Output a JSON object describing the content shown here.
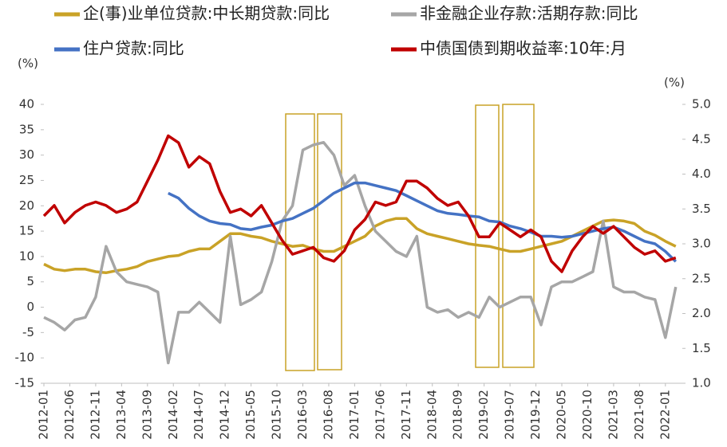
{
  "chart_data": {
    "type": "line",
    "left_unit": "(%)",
    "right_unit": "(%)",
    "x": [
      "2012-01",
      "2012-03",
      "2012-05",
      "2012-07",
      "2012-09",
      "2012-11",
      "2013-01",
      "2013-03",
      "2013-05",
      "2013-07",
      "2013-09",
      "2013-11",
      "2014-01",
      "2014-03",
      "2014-05",
      "2014-07",
      "2014-09",
      "2014-11",
      "2015-01",
      "2015-03",
      "2015-05",
      "2015-07",
      "2015-09",
      "2015-11",
      "2016-01",
      "2016-03",
      "2016-05",
      "2016-07",
      "2016-09",
      "2016-11",
      "2017-01",
      "2017-03",
      "2017-05",
      "2017-07",
      "2017-09",
      "2017-11",
      "2018-01",
      "2018-03",
      "2018-05",
      "2018-07",
      "2018-09",
      "2018-11",
      "2019-01",
      "2019-03",
      "2019-05",
      "2019-07",
      "2019-09",
      "2019-11",
      "2020-01",
      "2020-03",
      "2020-05",
      "2020-07",
      "2020-09",
      "2020-11",
      "2021-01",
      "2021-03",
      "2021-05",
      "2021-07",
      "2021-09",
      "2021-11",
      "2022-01",
      "2022-03"
    ],
    "xticks": [
      "2012-01",
      "2012-06",
      "2012-11",
      "2013-04",
      "2013-09",
      "2014-02",
      "2014-07",
      "2014-12",
      "2015-05",
      "2015-10",
      "2016-03",
      "2016-08",
      "2017-01",
      "2017-06",
      "2017-11",
      "2018-04",
      "2018-09",
      "2019-02",
      "2019-07",
      "2019-12",
      "2020-05",
      "2020-10",
      "2021-03",
      "2021-08",
      "2022-01"
    ],
    "ylim": [
      -15,
      40
    ],
    "yticks": [
      -15,
      -10,
      -5,
      0,
      5,
      10,
      15,
      20,
      25,
      30,
      35,
      40
    ],
    "y2lim": [
      1.0,
      5.0
    ],
    "y2ticks": [
      {
        "value": 1,
        "label": "1.0"
      },
      1.5,
      {
        "value": 2,
        "label": "2.0"
      },
      2.5,
      {
        "value": 3,
        "label": "3.0"
      },
      3.5,
      {
        "value": 4,
        "label": "4.0"
      },
      4.5,
      {
        "value": 5,
        "label": "5.0"
      }
    ],
    "series": [
      {
        "name": "企(事)业单位贷款:中长期贷款:同比",
        "color": "#c9a227",
        "values": [
          8.5,
          7.5,
          7.2,
          7.5,
          7.5,
          7,
          6.8,
          7.2,
          7.5,
          8,
          9,
          9.5,
          10,
          10.2,
          11,
          11.5,
          11.5,
          13,
          14.5,
          14.5,
          14,
          13.7,
          13,
          12.5,
          12,
          12.2,
          11.5,
          11,
          11,
          12,
          13,
          14,
          16,
          17,
          17.5,
          17.5,
          15.5,
          14.5,
          14,
          13.5,
          13,
          12.5,
          12.2,
          12,
          11.5,
          11,
          11,
          11.5,
          12,
          12.5,
          13,
          14,
          15,
          16,
          17,
          17.2,
          17,
          16.5,
          15,
          14.2,
          13,
          12
        ]
      },
      {
        "name": "非金融企业存款:活期存款:同比",
        "color": "#a6a6a6",
        "values": [
          -2,
          -3,
          -4.5,
          -2.5,
          -2,
          2,
          12,
          7,
          5,
          4.5,
          4,
          3,
          -11,
          -1,
          -1,
          1,
          -1,
          -3,
          14,
          0.5,
          1.5,
          3,
          9,
          17,
          20,
          31,
          32,
          32.5,
          30,
          24,
          26,
          20,
          15,
          13,
          11,
          10,
          14,
          0,
          -1,
          -0.5,
          -2,
          -1,
          -2,
          2,
          0,
          1,
          2,
          2,
          -3.5,
          4,
          5,
          5,
          6,
          7,
          17,
          4,
          3,
          3,
          2,
          1.5,
          -6,
          4
        ]
      },
      {
        "name": "住户贷款:同比",
        "color": "#4472c4",
        "values": [
          null,
          null,
          null,
          null,
          null,
          null,
          null,
          null,
          null,
          null,
          null,
          null,
          22.5,
          21.5,
          19.5,
          18,
          17,
          16.5,
          16.3,
          15.5,
          15.3,
          15.8,
          16.2,
          17,
          17.5,
          18.5,
          19.5,
          21,
          22.5,
          23.5,
          24.5,
          24.5,
          24,
          23.5,
          23,
          22,
          21,
          20,
          19,
          18.5,
          18.3,
          18,
          17.8,
          17,
          16.8,
          16,
          15.5,
          14.8,
          14,
          14,
          13.8,
          14,
          14.5,
          15,
          15.5,
          15.8,
          15,
          14,
          13,
          12.5,
          11,
          9
        ]
      },
      {
        "name": "中债国债到期收益率:10年:月",
        "color": "#c00000",
        "axis": "y2",
        "values": [
          3.4,
          3.55,
          3.3,
          3.45,
          3.55,
          3.6,
          3.55,
          3.45,
          3.5,
          3.6,
          3.9,
          4.2,
          4.55,
          4.45,
          4.1,
          4.25,
          4.15,
          3.75,
          3.45,
          3.5,
          3.4,
          3.55,
          3.3,
          3.05,
          2.85,
          2.9,
          2.95,
          2.8,
          2.75,
          2.9,
          3.2,
          3.35,
          3.6,
          3.55,
          3.6,
          3.9,
          3.9,
          3.8,
          3.65,
          3.55,
          3.6,
          3.4,
          3.1,
          3.1,
          3.3,
          3.2,
          3.1,
          3.2,
          3.1,
          2.75,
          2.6,
          2.9,
          3.1,
          3.25,
          3.15,
          3.25,
          3.1,
          2.95,
          2.85,
          2.9,
          2.75,
          2.8
        ]
      }
    ]
  }
}
